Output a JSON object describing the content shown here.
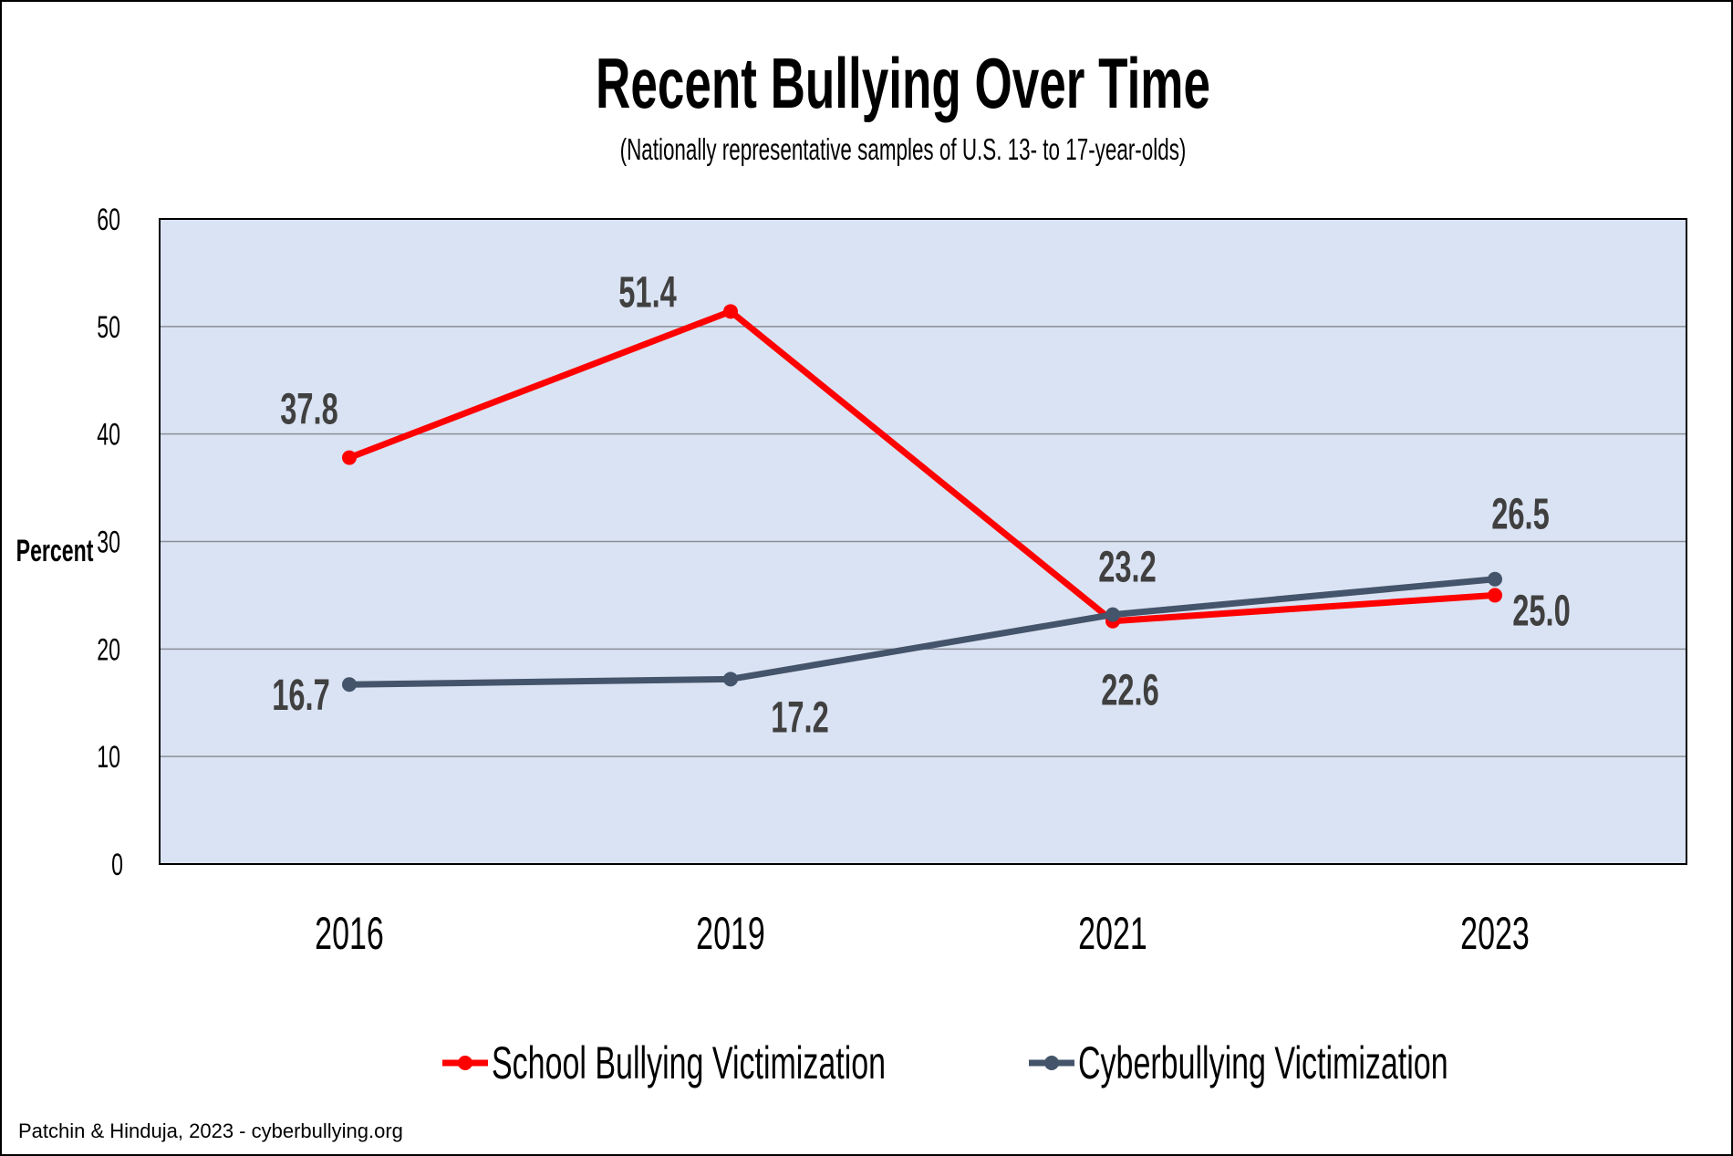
{
  "chart_data": {
    "type": "line",
    "title": "Recent Bullying Over Time",
    "subtitle": "(Nationally representative samples of U.S. 13- to 17-year-olds)",
    "xlabel": "",
    "ylabel": "Percent",
    "categories": [
      "2016",
      "2019",
      "2021",
      "2023"
    ],
    "ylim": [
      0,
      60
    ],
    "yticks": [
      "0",
      "10",
      "20",
      "30",
      "40",
      "50",
      "60"
    ],
    "grid": true,
    "legend_position": "bottom",
    "plot_background": "#dae3f3",
    "series": [
      {
        "name": "School Bullying Victimization",
        "color": "#ff0000",
        "values": [
          37.8,
          51.4,
          22.6,
          25.0
        ],
        "labels": [
          "37.8",
          "51.4",
          "22.6",
          "25.0"
        ]
      },
      {
        "name": "Cyberbullying Victimization",
        "color": "#44546a",
        "values": [
          16.7,
          17.2,
          23.2,
          26.5
        ],
        "labels": [
          "16.7",
          "17.2",
          "23.2",
          "26.5"
        ]
      }
    ]
  },
  "footer": "Patchin & Hinduja, 2023 - cyberbullying.org"
}
